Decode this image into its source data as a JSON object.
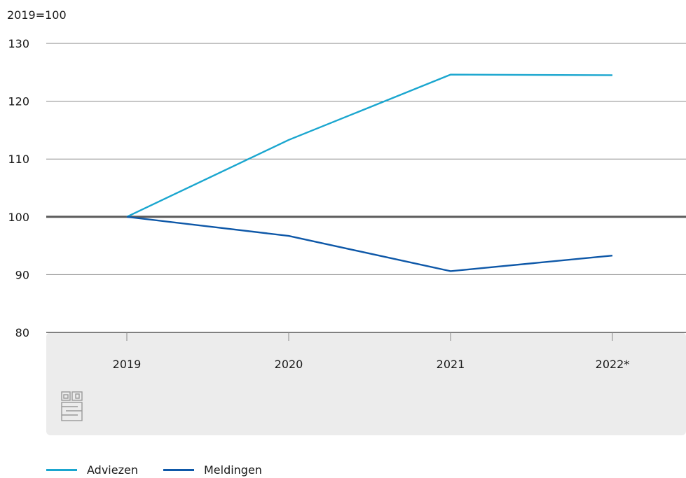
{
  "chart_data": {
    "type": "line",
    "unit_label": "2019=100",
    "categories": [
      "2019",
      "2020",
      "2021",
      "2022*"
    ],
    "series": [
      {
        "name": "Adviezen",
        "color": "#1aa6cf",
        "values": [
          100,
          113.3,
          124.6,
          124.5
        ]
      },
      {
        "name": "Meldingen",
        "color": "#0e58a8",
        "values": [
          100,
          96.7,
          90.6,
          93.3
        ]
      }
    ],
    "y_ticks": [
      130,
      120,
      110,
      100,
      90,
      80
    ],
    "ylim": [
      80,
      130
    ],
    "reference_line": 100,
    "grid": true,
    "legend_position": "bottom-left"
  },
  "logo": {
    "name": "cbs-logo-icon"
  }
}
